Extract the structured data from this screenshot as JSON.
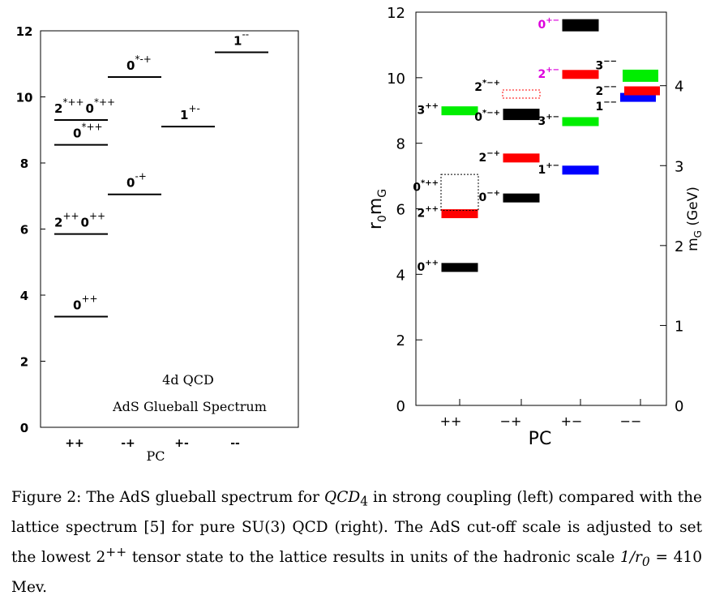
{
  "chart_data": [
    {
      "type": "bar",
      "title": "",
      "annotation_lines": [
        "4d  QCD",
        "AdS Glueball Spectrum"
      ],
      "xlabel": "PC",
      "ylabel": "",
      "ylim": [
        0,
        12
      ],
      "yticks": [
        "0",
        "2",
        "4",
        "6",
        "8",
        "10",
        "12"
      ],
      "categories": [
        "++",
        "-+",
        "+-",
        "--"
      ],
      "grid": false,
      "levels": [
        {
          "pc": "++",
          "mass": 3.35,
          "label": "0",
          "sup": "++"
        },
        {
          "pc": "++",
          "mass": 5.85,
          "label": "2",
          "sup": "++",
          "label2": "0",
          "sup2": "++"
        },
        {
          "pc": "++",
          "mass": 8.55,
          "label": "0",
          "sup": "*++"
        },
        {
          "pc": "++",
          "mass": 9.3,
          "label": "2",
          "sup": "*++",
          "label2": "0",
          "sup2": "*++"
        },
        {
          "pc": "-+",
          "mass": 7.05,
          "label": "0",
          "sup": "-+"
        },
        {
          "pc": "-+",
          "mass": 10.6,
          "label": "0",
          "sup": "*-+"
        },
        {
          "pc": "+-",
          "mass": 9.1,
          "label": "1",
          "sup": "+-"
        },
        {
          "pc": "--",
          "mass": 11.35,
          "label": "1",
          "sup": "--"
        }
      ]
    },
    {
      "type": "bar",
      "title": "",
      "xlabel": "PC",
      "ylabel": "r0mG",
      "ylabel_main": "r",
      "ylabel_sub1": "0",
      "ylabel_main2": "m",
      "ylabel_sub2": "G",
      "y2label": "mG (GeV)",
      "y2label_main": "m",
      "y2label_sub": "G",
      "y2label_unit": " (GeV)",
      "ylim": [
        0,
        12
      ],
      "yticks": [
        "0",
        "2",
        "4",
        "6",
        "8",
        "10",
        "12"
      ],
      "y2ticks": [
        "0",
        "1",
        "2",
        "3",
        "4"
      ],
      "categories": [
        "++",
        "−+",
        "+−",
        "−−"
      ],
      "grid": false,
      "levels": [
        {
          "pc": "++",
          "mass": 4.21,
          "label": "0",
          "sup": "++",
          "color": "#000000"
        },
        {
          "pc": "++",
          "mass": 5.85,
          "label": "2",
          "sup": "++",
          "color": "#ff0000"
        },
        {
          "pc": "++",
          "mass": 6.5,
          "label": "0",
          "sup": "*++",
          "color": "#000000",
          "dotted": true
        },
        {
          "pc": "++",
          "mass": 8.99,
          "label": "3",
          "sup": "++",
          "color": "#00ee00"
        },
        {
          "pc": "-+",
          "mass": 6.33,
          "label": "0",
          "sup": "−+",
          "color": "#000000"
        },
        {
          "pc": "-+",
          "mass": 7.55,
          "label": "2",
          "sup": "−+",
          "color": "#ff0000"
        },
        {
          "pc": "-+",
          "mass": 8.88,
          "label": "0",
          "sup": "*−+",
          "color": "#000000"
        },
        {
          "pc": "-+",
          "mass": 9.5,
          "label": "2",
          "sup": "*−+",
          "color": "#ff0000",
          "dotted": true
        },
        {
          "pc": "+-",
          "mass": 7.18,
          "label": "1",
          "sup": "+−",
          "color": "#0000ff"
        },
        {
          "pc": "+-",
          "mass": 8.66,
          "label": "3",
          "sup": "+−",
          "color": "#00ee00"
        },
        {
          "pc": "+-",
          "mass": 10.1,
          "label": "2",
          "sup": "+−",
          "color": "#ff0000",
          "label_color": "#dd00dd"
        },
        {
          "pc": "+-",
          "mass": 11.6,
          "label": "0",
          "sup": "+−",
          "color": "#000000",
          "label_color": "#dd00dd"
        },
        {
          "pc": "--",
          "mass": 9.4,
          "label": "1",
          "sup": "−−",
          "color": "#0000ff"
        },
        {
          "pc": "--",
          "mass": 9.6,
          "label": "2",
          "sup": "−−",
          "color": "#ff0000"
        },
        {
          "pc": "--",
          "mass": 10.06,
          "label": "3",
          "sup": "−−",
          "color": "#00ee00"
        }
      ]
    }
  ],
  "caption": {
    "part1": "Figure 2: The AdS glueball spectrum for ",
    "qcd": "QCD",
    "qcd_sub": "4",
    "part2": " in strong coupling (left) compared with the lattice spectrum [5] for pure SU(3) QCD (right). The AdS cut-off scale is adjusted to set the lowest 2",
    "sup": "++",
    "part3": " tensor state to the lattice results in units of the hadronic scale ",
    "formula": "1/r",
    "formula_sub": "0",
    "part4": " = 410 Mev."
  }
}
